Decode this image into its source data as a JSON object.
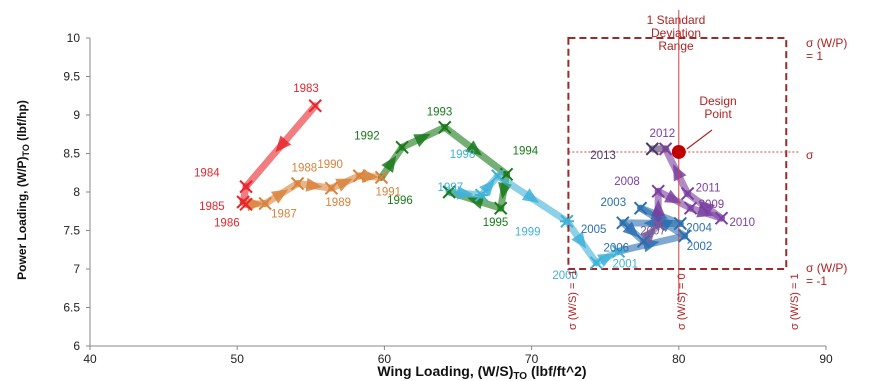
{
  "chart_data": {
    "type": "scatter",
    "xlabel": "Wing Loading, (W/S)",
    "xlabel_sub": "TO",
    "xlabel_unit": " (lbf/ft^2)",
    "ylabel": "Power Loading, (W/P)",
    "ylabel_sub": "TO",
    "ylabel_unit": " (lbf/hp)",
    "xlim": [
      40,
      90
    ],
    "ylim": [
      6,
      10
    ],
    "xticks": [
      "40",
      "50",
      "60",
      "70",
      "80",
      "90"
    ],
    "yticks": [
      "6",
      "6.5",
      "7",
      "7.5",
      "8",
      "8.5",
      "9",
      "9.5",
      "10"
    ],
    "grid": false,
    "design_point": {
      "x": 80,
      "y": 8.52,
      "label": "Design Point",
      "color": "#c00000"
    },
    "std_box": {
      "x": [
        72.5,
        87.3
      ],
      "y": [
        7.0,
        10.0
      ],
      "color": "#9b2a2a"
    },
    "annotations": {
      "std_range": "1 Standard Deviation Range",
      "sigma_wp_top": "σ (W/P) = 1",
      "sigma_wp_mid": "σ",
      "sigma_wp_bot": "σ (W/P) = -1",
      "sigma_ws_left": "σ (W/S) = -1",
      "sigma_ws_mid": "σ (W/S) = 0",
      "sigma_ws_right": "σ (W/S) = 1"
    },
    "points": [
      {
        "label": "1983",
        "x": 55.3,
        "y": 9.12,
        "color": "#e8262c"
      },
      {
        "label": "1984",
        "x": 50.6,
        "y": 8.07,
        "color": "#e8262c"
      },
      {
        "label": "1985",
        "x": 50.4,
        "y": 7.87,
        "color": "#e8262c"
      },
      {
        "label": "1986",
        "x": 50.6,
        "y": 7.84,
        "color": "#e8262c"
      },
      {
        "label": "1987",
        "x": 51.9,
        "y": 7.85,
        "color": "#d9823b"
      },
      {
        "label": "1988",
        "x": 54.1,
        "y": 8.11,
        "color": "#d9823b"
      },
      {
        "label": "1989",
        "x": 56.4,
        "y": 8.05,
        "color": "#d9823b"
      },
      {
        "label": "1990",
        "x": 58.3,
        "y": 8.21,
        "color": "#d9823b"
      },
      {
        "label": "1991",
        "x": 59.8,
        "y": 8.19,
        "color": "#d9823b"
      },
      {
        "label": "1992",
        "x": 61.2,
        "y": 8.58,
        "color": "#1a7a1a"
      },
      {
        "label": "1993",
        "x": 64.1,
        "y": 8.84,
        "color": "#1a7a1a"
      },
      {
        "label": "1994",
        "x": 68.3,
        "y": 8.23,
        "color": "#1a7a1a"
      },
      {
        "label": "1995",
        "x": 67.9,
        "y": 7.79,
        "color": "#1a7a1a"
      },
      {
        "label": "1996",
        "x": 64.4,
        "y": 8.0,
        "color": "#1a7a1a"
      },
      {
        "label": "1997",
        "x": 66.6,
        "y": 7.96,
        "color": "#3fb2d8"
      },
      {
        "label": "1998",
        "x": 67.7,
        "y": 8.21,
        "color": "#3fb2d8"
      },
      {
        "label": "1999",
        "x": 72.4,
        "y": 7.62,
        "color": "#3fb2d8"
      },
      {
        "label": "2000",
        "x": 74.4,
        "y": 7.08,
        "color": "#3fb2d8"
      },
      {
        "label": "2001",
        "x": 75.9,
        "y": 7.23,
        "color": "#3fb2d8"
      },
      {
        "label": "2002",
        "x": 80.4,
        "y": 7.43,
        "color": "#2a6fb0"
      },
      {
        "label": "2003",
        "x": 77.4,
        "y": 7.79,
        "color": "#2a6fb0"
      },
      {
        "label": "2004",
        "x": 80.1,
        "y": 7.59,
        "color": "#2a6fb0"
      },
      {
        "label": "2005",
        "x": 76.2,
        "y": 7.6,
        "color": "#2a6fb0"
      },
      {
        "label": "2006",
        "x": 77.6,
        "y": 7.36,
        "color": "#2a6fb0"
      },
      {
        "label": "2007",
        "x": 78.6,
        "y": 7.58,
        "color": "#7a5a9a"
      },
      {
        "label": "2008",
        "x": 78.6,
        "y": 8.01,
        "color": "#7a3fa0"
      },
      {
        "label": "2009",
        "x": 80.8,
        "y": 7.79,
        "color": "#7a3fa0"
      },
      {
        "label": "2010",
        "x": 82.9,
        "y": 7.66,
        "color": "#7a3fa0"
      },
      {
        "label": "2011",
        "x": 80.6,
        "y": 7.98,
        "color": "#7a3fa0"
      },
      {
        "label": "2012",
        "x": 79.1,
        "y": 8.56,
        "color": "#7a3fa0"
      },
      {
        "label": "2013",
        "x": 78.2,
        "y": 8.56,
        "color": "#4a3a6a"
      }
    ]
  }
}
